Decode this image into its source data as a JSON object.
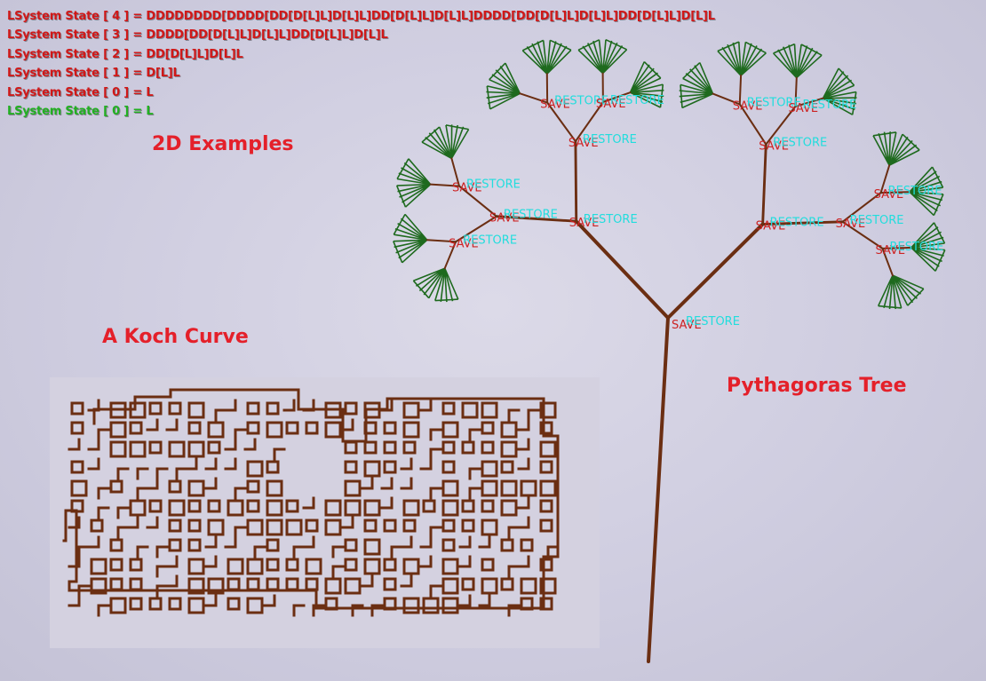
{
  "debug_log": [
    {
      "text": "LSystem State [ 4 ] = DDDDDDDD[DDDD[DD[D[L]L]D[L]L]DD[D[L]L]D[L]L]DDDD[DD[D[L]L]D[L]L]DD[D[L]L]D[L]L",
      "color": "#d01818"
    },
    {
      "text": "LSystem State [ 3 ] = DDDD[DD[D[L]L]D[L]L]DD[D[L]L]D[L]L",
      "color": "#d01818"
    },
    {
      "text": "LSystem State [ 2 ] = DD[D[L]L]D[L]L",
      "color": "#d01818"
    },
    {
      "text": "LSystem State [ 1 ] = D[L]L",
      "color": "#d01818"
    },
    {
      "text": "LSystem State [ 0 ] = L",
      "color": "#d01818"
    },
    {
      "text": "LSystem State [ 0 ] = L",
      "color": "#22b022"
    }
  ],
  "headings": {
    "examples": "2D Examples",
    "koch": "A Koch Curve",
    "pythagoras": "Pythagoras Tree"
  },
  "tree_labels": {
    "save": "SAVE",
    "restore": "RESTORE",
    "save_color": "#cc2222",
    "restore_color": "#22dddd"
  },
  "colors": {
    "heading": "#e4202a",
    "branch": "#6b2e12",
    "leaf": "#1e6a1e",
    "koch_panel": "#d4d1e0"
  }
}
